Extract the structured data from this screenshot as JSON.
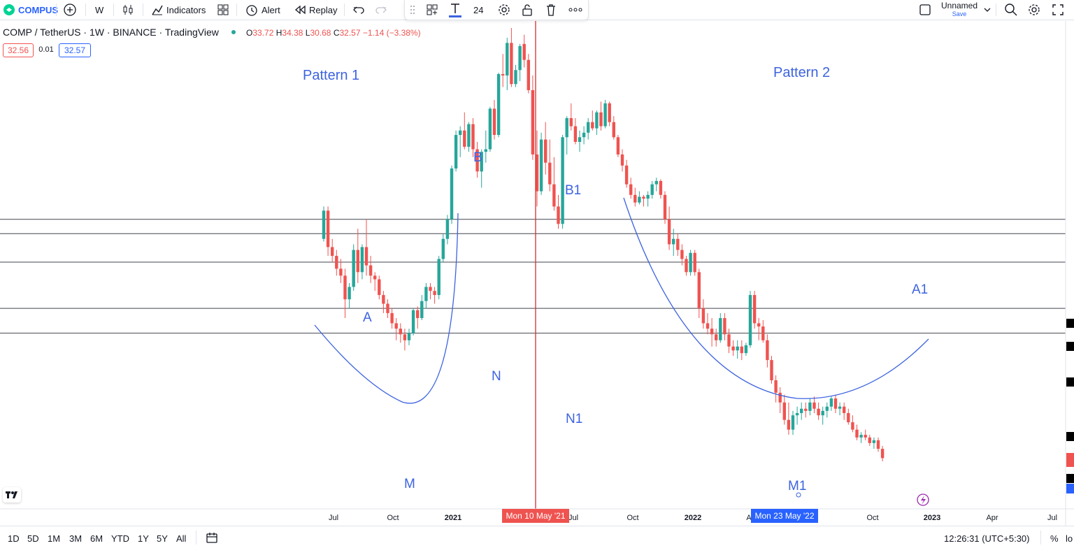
{
  "toolbar": {
    "symbol": "COMPUS",
    "interval": "W",
    "indicators_label": "Indicators",
    "alert_label": "Alert",
    "replay_label": "Replay",
    "font_size": "24",
    "layout_name": "Unnamed",
    "save_label": "Save"
  },
  "legend": {
    "title": "COMP / TetherUS · 1W · BINANCE · TradingView",
    "open_label": "O",
    "open": "33.72",
    "high_label": "H",
    "high": "34.38",
    "low_label": "L",
    "low": "30.68",
    "close_label": "C",
    "close": "32.57",
    "change": "−1.14 (−3.38%)",
    "bid": "32.56",
    "spread": "0.01",
    "ask": "32.57"
  },
  "colors": {
    "up": "#26a69a",
    "down": "#ef5350",
    "drawing": "#3d63e0",
    "cursor": "#d32f2f"
  },
  "annotations": [
    {
      "text": "Pattern 1"
    },
    {
      "text": "Pattern 2"
    },
    {
      "text": "A"
    },
    {
      "text": "B"
    },
    {
      "text": "N"
    },
    {
      "text": "M"
    },
    {
      "text": "A1"
    },
    {
      "text": "B1"
    },
    {
      "text": "N1"
    },
    {
      "text": "M1"
    }
  ],
  "x_axis": {
    "ticks": [
      "Jul",
      "Oct",
      "2021",
      "Jul",
      "Oct",
      "2022",
      "A",
      "Oct",
      "2023",
      "Apr",
      "Jul"
    ],
    "cursor_label": "Mon 10 May '21",
    "marker_label": "Mon 23 May '22"
  },
  "bottom": {
    "ranges": [
      "1D",
      "5D",
      "1M",
      "3M",
      "6M",
      "YTD",
      "1Y",
      "5Y",
      "All"
    ],
    "clock": "12:26:31 (UTC+5:30)",
    "percent_label": "%",
    "log_label": "lo"
  },
  "chart_data": {
    "type": "candlestick",
    "interval": "1W",
    "exchange": "BINANCE",
    "y_scale": "log",
    "up_color": "#26a69a",
    "down_color": "#ef5350",
    "description": "Weekly COMP/USDT candles with cup-shaped curves and horizontal support levels",
    "candles_ohlc": [
      [
        230,
        300,
        225,
        290
      ],
      [
        290,
        300,
        200,
        215
      ],
      [
        215,
        230,
        190,
        200
      ],
      [
        200,
        210,
        170,
        180
      ],
      [
        180,
        195,
        160,
        170
      ],
      [
        170,
        180,
        120,
        140
      ],
      [
        140,
        160,
        130,
        155
      ],
      [
        155,
        220,
        150,
        210
      ],
      [
        210,
        250,
        160,
        175
      ],
      [
        175,
        220,
        165,
        215
      ],
      [
        215,
        270,
        170,
        185
      ],
      [
        185,
        200,
        160,
        170
      ],
      [
        170,
        175,
        150,
        165
      ],
      [
        165,
        170,
        140,
        145
      ],
      [
        145,
        150,
        125,
        135
      ],
      [
        135,
        140,
        120,
        125
      ],
      [
        125,
        130,
        110,
        115
      ],
      [
        115,
        120,
        100,
        110
      ],
      [
        110,
        115,
        98,
        105
      ],
      [
        105,
        110,
        92,
        100
      ],
      [
        100,
        110,
        96,
        106
      ],
      [
        106,
        130,
        104,
        128
      ],
      [
        128,
        132,
        110,
        120
      ],
      [
        120,
        145,
        118,
        138
      ],
      [
        138,
        160,
        130,
        155
      ],
      [
        155,
        160,
        140,
        150
      ],
      [
        150,
        155,
        135,
        145
      ],
      [
        145,
        200,
        140,
        195
      ],
      [
        195,
        240,
        190,
        230
      ],
      [
        230,
        280,
        220,
        270
      ],
      [
        270,
        420,
        260,
        410
      ],
      [
        410,
        560,
        400,
        540
      ],
      [
        540,
        580,
        450,
        560
      ],
      [
        560,
        650,
        480,
        490
      ],
      [
        490,
        600,
        470,
        590
      ],
      [
        590,
        620,
        450,
        480
      ],
      [
        480,
        510,
        380,
        400
      ],
      [
        400,
        480,
        350,
        470
      ],
      [
        470,
        560,
        430,
        480
      ],
      [
        480,
        680,
        470,
        670
      ],
      [
        670,
        720,
        520,
        540
      ],
      [
        540,
        900,
        530,
        890
      ],
      [
        890,
        1050,
        800,
        880
      ],
      [
        880,
        1200,
        780,
        1150
      ],
      [
        1150,
        1300,
        800,
        820
      ],
      [
        820,
        960,
        800,
        920
      ],
      [
        920,
        1140,
        840,
        1120
      ],
      [
        1140,
        1230,
        940,
        1000
      ],
      [
        1000,
        1050,
        760,
        780
      ],
      [
        780,
        880,
        440,
        460
      ],
      [
        460,
        560,
        300,
        340
      ],
      [
        340,
        550,
        330,
        520
      ],
      [
        520,
        600,
        390,
        430
      ],
      [
        430,
        520,
        340,
        360
      ],
      [
        360,
        450,
        290,
        300
      ],
      [
        300,
        330,
        250,
        260
      ],
      [
        260,
        540,
        250,
        530
      ],
      [
        530,
        630,
        460,
        620
      ],
      [
        620,
        700,
        560,
        580
      ],
      [
        580,
        620,
        500,
        510
      ],
      [
        510,
        560,
        470,
        530
      ],
      [
        530,
        580,
        500,
        550
      ],
      [
        550,
        620,
        520,
        600
      ],
      [
        600,
        660,
        560,
        570
      ],
      [
        570,
        660,
        540,
        650
      ],
      [
        650,
        710,
        560,
        580
      ],
      [
        580,
        720,
        570,
        700
      ],
      [
        700,
        710,
        580,
        600
      ],
      [
        600,
        630,
        520,
        530
      ],
      [
        530,
        540,
        450,
        460
      ],
      [
        460,
        480,
        400,
        420
      ],
      [
        420,
        440,
        350,
        360
      ],
      [
        360,
        380,
        320,
        330
      ],
      [
        330,
        350,
        300,
        310
      ],
      [
        310,
        340,
        305,
        325
      ],
      [
        325,
        330,
        300,
        320
      ],
      [
        320,
        340,
        300,
        330
      ],
      [
        330,
        370,
        320,
        360
      ],
      [
        360,
        380,
        340,
        370
      ],
      [
        370,
        375,
        320,
        330
      ],
      [
        330,
        340,
        260,
        270
      ],
      [
        270,
        300,
        210,
        220
      ],
      [
        220,
        250,
        200,
        230
      ],
      [
        230,
        240,
        200,
        210
      ],
      [
        210,
        220,
        185,
        195
      ],
      [
        195,
        200,
        170,
        175
      ],
      [
        175,
        210,
        170,
        205
      ],
      [
        205,
        210,
        170,
        175
      ],
      [
        175,
        180,
        120,
        130
      ],
      [
        130,
        140,
        110,
        115
      ],
      [
        115,
        125,
        105,
        110
      ],
      [
        110,
        120,
        95,
        105
      ],
      [
        105,
        110,
        95,
        100
      ],
      [
        100,
        125,
        98,
        120
      ],
      [
        120,
        125,
        100,
        105
      ],
      [
        105,
        110,
        90,
        95
      ],
      [
        95,
        100,
        88,
        92
      ],
      [
        92,
        100,
        86,
        95
      ],
      [
        95,
        100,
        85,
        90
      ],
      [
        90,
        98,
        88,
        96
      ],
      [
        96,
        150,
        94,
        145
      ],
      [
        145,
        150,
        110,
        115
      ],
      [
        115,
        120,
        100,
        112
      ],
      [
        112,
        118,
        98,
        100
      ],
      [
        100,
        105,
        80,
        85
      ],
      [
        85,
        88,
        70,
        72
      ],
      [
        72,
        75,
        60,
        65
      ],
      [
        65,
        68,
        55,
        60
      ],
      [
        60,
        64,
        50,
        52
      ],
      [
        52,
        60,
        46,
        48
      ],
      [
        48,
        56,
        46,
        54
      ],
      [
        54,
        58,
        50,
        55
      ],
      [
        55,
        60,
        52,
        57
      ],
      [
        57,
        60,
        53,
        56
      ],
      [
        56,
        62,
        54,
        60
      ],
      [
        60,
        63,
        55,
        57
      ],
      [
        57,
        60,
        52,
        54
      ],
      [
        54,
        58,
        50,
        56
      ],
      [
        56,
        60,
        53,
        58
      ],
      [
        58,
        63,
        56,
        62
      ],
      [
        62,
        64,
        55,
        57
      ],
      [
        57,
        60,
        54,
        58
      ],
      [
        58,
        60,
        52,
        55
      ],
      [
        55,
        57,
        50,
        51
      ],
      [
        51,
        54,
        47,
        48
      ],
      [
        48,
        50,
        44,
        45
      ],
      [
        45,
        47,
        43,
        46
      ],
      [
        46,
        48,
        44,
        45
      ],
      [
        45,
        46,
        42,
        43
      ],
      [
        43,
        45,
        41,
        44
      ],
      [
        44,
        45,
        40,
        41
      ],
      [
        41,
        42,
        37,
        38
      ]
    ],
    "support_levels": [
      270,
      240,
      190,
      130,
      106
    ],
    "first_candle_week": "2020-06-15",
    "first_label_in_legend": "O 33.72 H 34.38 L 30.68 C 32.57",
    "cursor_date": "2021-05-10",
    "marker_date": "2022-05-23"
  }
}
